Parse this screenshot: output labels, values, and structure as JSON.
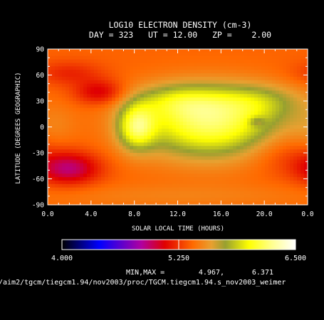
{
  "colors": {
    "background": "#000000",
    "text": "#ffffff",
    "frame": "#ffffff"
  },
  "chart_data": {
    "type": "heatmap",
    "title": "LOG10 ELECTRON DENSITY (cm-3)",
    "subtitle": "DAY = 323   UT = 12.00   ZP =    2.00",
    "xlabel": "SOLAR LOCAL TIME (HOURS)",
    "ylabel": "LATITUDE (DEGREES GEOGRAPHIC)",
    "x_ticks": [
      "0.0",
      "4.0",
      "8.0",
      "12.0",
      "16.0",
      "20.0",
      "0.0"
    ],
    "y_ticks": [
      "90",
      "60",
      "30",
      "0",
      "-30",
      "-60",
      "-90"
    ],
    "xlim": [
      0,
      24
    ],
    "ylim": [
      -90,
      90
    ],
    "colorbar": {
      "min_label": "4.000",
      "mid_label": "5.250",
      "max_label": "6.500",
      "range": [
        4.0,
        6.5
      ],
      "stops": [
        {
          "v": 4.0,
          "color": "#000000"
        },
        {
          "v": 4.4,
          "color": "#0000ff"
        },
        {
          "v": 4.85,
          "color": "#b000a0"
        },
        {
          "v": 5.1,
          "color": "#e00000"
        },
        {
          "v": 5.4,
          "color": "#ff6a00"
        },
        {
          "v": 5.6,
          "color": "#e8a030"
        },
        {
          "v": 5.75,
          "color": "#98a030"
        },
        {
          "v": 6.0,
          "color": "#ffff00"
        },
        {
          "v": 6.25,
          "color": "#ffff90"
        },
        {
          "v": 6.5,
          "color": "#ffffff"
        }
      ]
    },
    "minmax_label": "MIN,MAX =",
    "min_value": "4.967,",
    "max_value": "6.371",
    "grid": false,
    "field_model": {
      "base": 5.38,
      "terms": [
        {
          "lt": 15.0,
          "lat": 4,
          "a": 0.78,
          "slt": 4.6,
          "slat": 28,
          "wrap": false
        },
        {
          "lt": 12.0,
          "lat": 30,
          "a": 0.3,
          "slt": 3.0,
          "slat": 14,
          "wrap": false
        },
        {
          "lt": 19.5,
          "lat": 30,
          "a": 0.25,
          "slt": 3.0,
          "slat": 14,
          "wrap": false
        },
        {
          "lt": 8.2,
          "lat": 0,
          "a": 0.6,
          "slt": 1.2,
          "slat": 18,
          "wrap": false
        },
        {
          "lt": 0.5,
          "lat": 0,
          "a": 0.12,
          "slt": 1.5,
          "slat": 20,
          "wrap": true
        },
        {
          "lt": 2.0,
          "lat": -48,
          "a": -0.45,
          "slt": 2.0,
          "slat": 13,
          "wrap": true
        },
        {
          "lt": 4.8,
          "lat": 40,
          "a": -0.32,
          "slt": 1.6,
          "slat": 10,
          "wrap": false
        },
        {
          "lt": 2.0,
          "lat": 62,
          "a": -0.18,
          "slt": 2.2,
          "slat": 10,
          "wrap": true
        },
        {
          "lt": 22.0,
          "lat": -30,
          "a": -0.15,
          "slt": 2.5,
          "slat": 18,
          "wrap": true
        },
        {
          "lt": 19.3,
          "lat": 6,
          "a": -0.22,
          "slt": 0.55,
          "slat": 4,
          "wrap": false
        },
        {
          "lt": 12.0,
          "lat": -80,
          "a": 0.1,
          "slt": 10,
          "slat": 10,
          "wrap": true
        }
      ]
    }
  },
  "footer": {
    "path": "/aim2/tgcm/tiegcm1.94/nov2003/proc/TGCM.tiegcm1.94.s_nov2003_weimer"
  }
}
